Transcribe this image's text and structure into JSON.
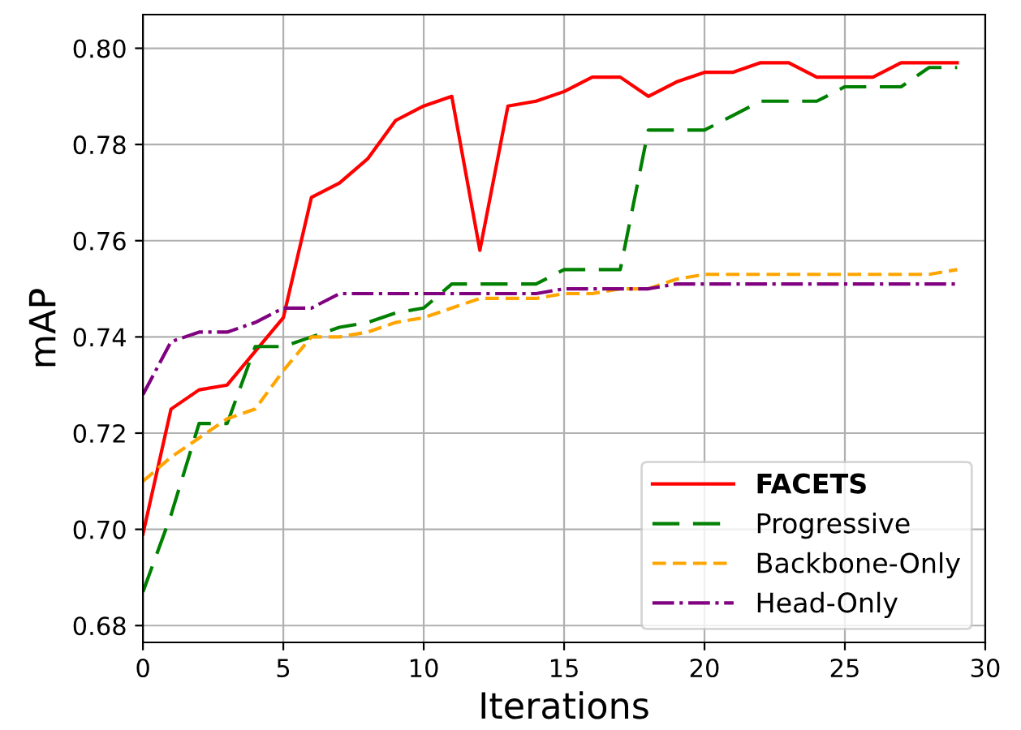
{
  "chart_data": {
    "type": "line",
    "xlabel": "Iterations",
    "ylabel": "mAP",
    "xlim": [
      0,
      30
    ],
    "ylim": [
      0.6765,
      0.807
    ],
    "xticks": [
      0,
      5,
      10,
      15,
      20,
      25,
      30
    ],
    "yticks": [
      {
        "value": 0.68,
        "label": "0.68"
      },
      {
        "value": 0.7,
        "label": "0.70"
      },
      {
        "value": 0.72,
        "label": "0.72"
      },
      {
        "value": 0.74,
        "label": "0.74"
      },
      {
        "value": 0.76,
        "label": "0.76"
      },
      {
        "value": 0.78,
        "label": "0.78"
      },
      {
        "value": 0.8,
        "label": "0.80"
      }
    ],
    "grid": true,
    "legend": "bottom right",
    "marker": "none",
    "x": [
      0,
      1,
      2,
      3,
      4,
      5,
      6,
      7,
      8,
      9,
      10,
      11,
      12,
      13,
      14,
      15,
      16,
      17,
      18,
      19,
      20,
      21,
      22,
      23,
      24,
      25,
      26,
      27,
      28,
      29
    ],
    "series": [
      {
        "name": "FACETS",
        "color": "#ff0000",
        "line_style": "solid",
        "values": [
          0.699,
          0.725,
          0.729,
          0.73,
          0.737,
          0.744,
          0.769,
          0.772,
          0.777,
          0.785,
          0.788,
          0.79,
          0.758,
          0.788,
          0.789,
          0.791,
          0.794,
          0.794,
          0.79,
          0.793,
          0.795,
          0.795,
          0.797,
          0.797,
          0.794,
          0.794,
          0.794,
          0.797,
          0.797,
          0.797
        ]
      },
      {
        "name": "Progressive",
        "color": "#008000",
        "line_style": "dashed",
        "values": [
          0.687,
          0.703,
          0.722,
          0.722,
          0.738,
          0.738,
          0.74,
          0.742,
          0.743,
          0.745,
          0.746,
          0.751,
          0.751,
          0.751,
          0.751,
          0.754,
          0.754,
          0.754,
          0.783,
          0.783,
          0.783,
          0.786,
          0.789,
          0.789,
          0.789,
          0.792,
          0.792,
          0.792,
          0.796,
          0.796
        ]
      },
      {
        "name": "Backbone-Only",
        "color": "#ffa500",
        "line_style": "dashed",
        "values": [
          0.71,
          0.715,
          0.719,
          0.723,
          0.725,
          0.733,
          0.74,
          0.74,
          0.741,
          0.743,
          0.744,
          0.746,
          0.748,
          0.748,
          0.748,
          0.749,
          0.749,
          0.75,
          0.75,
          0.752,
          0.753,
          0.753,
          0.753,
          0.753,
          0.753,
          0.753,
          0.753,
          0.753,
          0.753,
          0.754
        ]
      },
      {
        "name": "Head-Only",
        "color": "#800080",
        "line_style": "dashdot",
        "values": [
          0.728,
          0.739,
          0.741,
          0.741,
          0.743,
          0.746,
          0.746,
          0.749,
          0.749,
          0.749,
          0.749,
          0.749,
          0.749,
          0.749,
          0.749,
          0.75,
          0.75,
          0.75,
          0.75,
          0.751,
          0.751,
          0.751,
          0.751,
          0.751,
          0.751,
          0.751,
          0.751,
          0.751,
          0.751,
          0.751
        ]
      }
    ]
  }
}
